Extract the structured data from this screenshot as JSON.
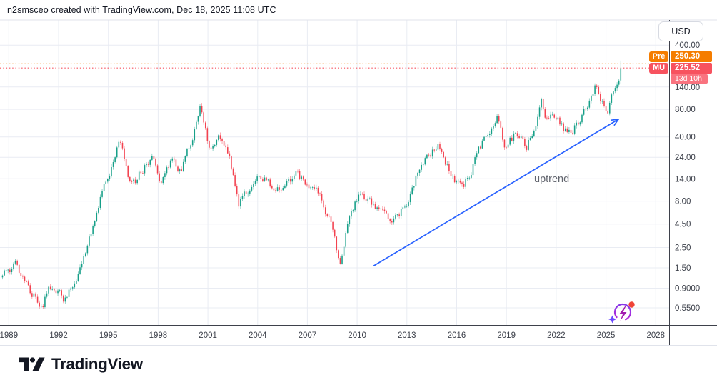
{
  "header": {
    "attribution": "n2smsceo created with TradingView.com, Dec 18, 2025 11:08 UTC"
  },
  "price_scale": {
    "currency_button": "USD",
    "premarket": {
      "tag": "Pre",
      "price_label": "250.30"
    },
    "last": {
      "tag": "MU",
      "price_label": "225.52",
      "countdown": "13d 10h"
    }
  },
  "footer": {
    "brand": "TradingView"
  },
  "chart_data": {
    "type": "candlestick",
    "symbol": "MU",
    "currency": "USD",
    "scale": "log",
    "interval": "monthly",
    "grid": true,
    "last_close": 225.52,
    "premarket_price": 250.3,
    "countdown": "13d 10h",
    "x_range_years": [
      1988.6,
      2028.8
    ],
    "price_ticks": [
      {
        "label": "400.00",
        "value": 400
      },
      {
        "label": "140.00",
        "value": 140
      },
      {
        "label": "80.00",
        "value": 80
      },
      {
        "label": "40.00",
        "value": 40
      },
      {
        "label": "24.00",
        "value": 24
      },
      {
        "label": "14.00",
        "value": 14
      },
      {
        "label": "8.00",
        "value": 8
      },
      {
        "label": "4.50",
        "value": 4.5
      },
      {
        "label": "2.50",
        "value": 2.5
      },
      {
        "label": "1.50",
        "value": 1.5
      },
      {
        "label": "0.9000",
        "value": 0.9
      },
      {
        "label": "0.5500",
        "value": 0.55
      }
    ],
    "year_ticks": [
      1989,
      1992,
      1995,
      1998,
      2001,
      2004,
      2007,
      2010,
      2013,
      2016,
      2019,
      2022,
      2025,
      2028
    ],
    "colors": {
      "up": "#089981",
      "down": "#f23645",
      "grid": "#e9ecf3",
      "axis_text": "#3d414b",
      "axis_border": "#3e414b",
      "pane_border": "#e0e3eb",
      "premarket": "#f57d00",
      "last": "#f7525f",
      "trendline": "#2962ff"
    },
    "anchors": [
      [
        1989.0,
        1.3
      ],
      [
        1989.5,
        1.6
      ],
      [
        1990.3,
        0.85
      ],
      [
        1991.0,
        0.62
      ],
      [
        1991.6,
        0.95
      ],
      [
        1992.3,
        0.65
      ],
      [
        1993.0,
        1.1
      ],
      [
        1993.8,
        3.0
      ],
      [
        1994.5,
        9.0
      ],
      [
        1995.1,
        16
      ],
      [
        1995.66,
        38
      ],
      [
        1996.35,
        11
      ],
      [
        1997.0,
        17
      ],
      [
        1997.6,
        26
      ],
      [
        1998.2,
        11.5
      ],
      [
        1998.9,
        22
      ],
      [
        1999.4,
        18
      ],
      [
        2000.0,
        35
      ],
      [
        2000.55,
        95
      ],
      [
        2001.1,
        26
      ],
      [
        2001.65,
        40
      ],
      [
        2002.3,
        26
      ],
      [
        2002.85,
        7.8
      ],
      [
        2003.6,
        12.5
      ],
      [
        2004.2,
        15.5
      ],
      [
        2005.1,
        9.3
      ],
      [
        2006.3,
        16.5
      ],
      [
        2007.2,
        11.5
      ],
      [
        2008.0,
        7.5
      ],
      [
        2008.6,
        3.5
      ],
      [
        2008.95,
        1.65
      ],
      [
        2009.6,
        7.0
      ],
      [
        2010.3,
        9.8
      ],
      [
        2011.0,
        7.0
      ],
      [
        2011.8,
        4.9
      ],
      [
        2012.4,
        5.6
      ],
      [
        2012.8,
        6.5
      ],
      [
        2013.8,
        19
      ],
      [
        2014.85,
        33
      ],
      [
        2015.6,
        16
      ],
      [
        2016.4,
        10.5
      ],
      [
        2017.0,
        20
      ],
      [
        2017.8,
        42
      ],
      [
        2018.5,
        62
      ],
      [
        2018.95,
        30
      ],
      [
        2019.6,
        45
      ],
      [
        2020.2,
        30
      ],
      [
        2020.8,
        55
      ],
      [
        2021.1,
        88
      ],
      [
        2021.45,
        64
      ],
      [
        2021.8,
        82
      ],
      [
        2022.5,
        47
      ],
      [
        2023.0,
        51
      ],
      [
        2023.6,
        68
      ],
      [
        2024.1,
        95
      ],
      [
        2024.35,
        145
      ],
      [
        2024.8,
        90
      ],
      [
        2025.05,
        73
      ],
      [
        2025.3,
        100
      ],
      [
        2025.55,
        135
      ],
      [
        2025.75,
        185
      ],
      [
        2025.89,
        225.52
      ]
    ],
    "annotations": {
      "trendline": {
        "label": "uptrend",
        "from_year": 2011.0,
        "from_price": 1.58,
        "to_year": 2025.75,
        "to_price": 62.3,
        "color": "#2962ff"
      }
    }
  }
}
